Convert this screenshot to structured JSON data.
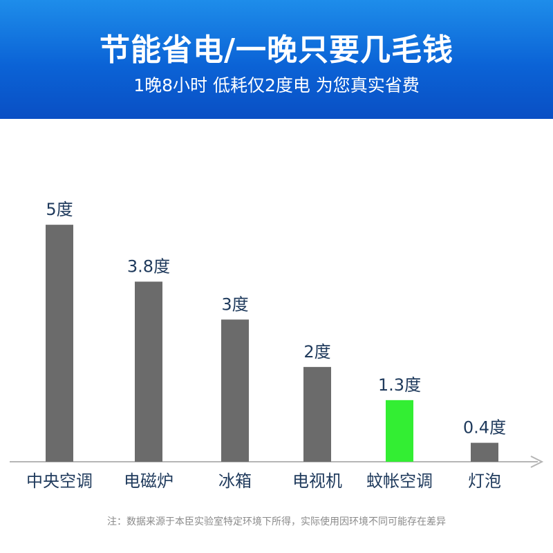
{
  "banner": {
    "title": "节能省电/一晚只要几毛钱",
    "subtitle": "1晚8小时 低耗仅2度电 为您真实省费"
  },
  "note": "注：数据来源于本臣实验室特定环境下所得，实际使用因环境不同可能存在差异",
  "colors": {
    "banner": "#0b63d6",
    "bar_default": "#6b6b6b",
    "bar_highlight": "#33ee33",
    "label_text": "#1f3a5c"
  },
  "chart_data": {
    "type": "bar",
    "categories": [
      "中央空调",
      "电磁炉",
      "冰箱",
      "电视机",
      "蚊帐空调",
      "灯泡"
    ],
    "values": [
      5,
      3.8,
      3,
      2,
      1.3,
      0.4
    ],
    "value_labels": [
      "5度",
      "3.8度",
      "3度",
      "2度",
      "1.3度",
      "0.4度"
    ],
    "highlight_index": 4,
    "ylim": [
      0,
      5.6
    ],
    "grid": false,
    "legend": "none"
  }
}
